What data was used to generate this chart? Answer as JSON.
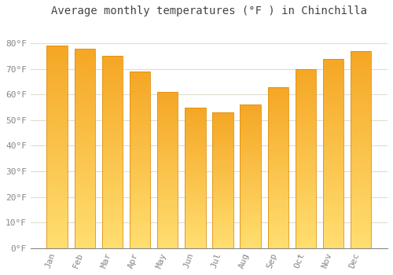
{
  "title": "Average monthly temperatures (°F ) in Chinchilla",
  "months": [
    "Jan",
    "Feb",
    "Mar",
    "Apr",
    "May",
    "Jun",
    "Jul",
    "Aug",
    "Sep",
    "Oct",
    "Nov",
    "Dec"
  ],
  "values": [
    79,
    78,
    75,
    69,
    61,
    55,
    53,
    56,
    63,
    70,
    74,
    77
  ],
  "bar_color_top": "#F5A623",
  "bar_color_bottom": "#FFD070",
  "bar_edge_color": "#E09010",
  "background_color": "#FFFFFF",
  "grid_color": "#DDDDCC",
  "yticks": [
    0,
    10,
    20,
    30,
    40,
    50,
    60,
    70,
    80
  ],
  "ytick_labels": [
    "0°F",
    "10°F",
    "20°F",
    "30°F",
    "40°F",
    "50°F",
    "60°F",
    "70°F",
    "80°F"
  ],
  "ylim": [
    0,
    88
  ],
  "title_fontsize": 10,
  "tick_fontsize": 8,
  "tick_font_color": "#888888",
  "font_family": "monospace"
}
